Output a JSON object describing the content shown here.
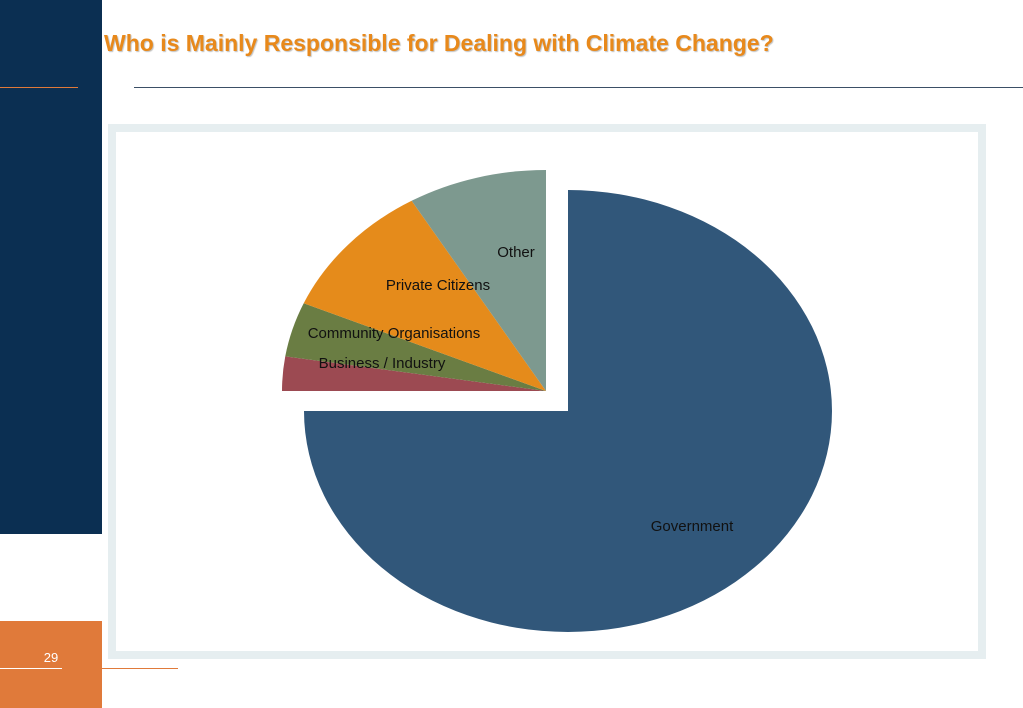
{
  "slide": {
    "title": "Who is Mainly Responsible for Dealing with Climate Change?",
    "page_number": "29"
  },
  "colors": {
    "sidebar": "#0b2f52",
    "accent": "#e07a3a",
    "title": "#e8891b"
  },
  "chart_data": {
    "type": "pie",
    "title": "",
    "slices": [
      {
        "label": "Government",
        "value": 75,
        "color": "#31577a",
        "exploded": false
      },
      {
        "label": "Business / Industry",
        "value": 2.5,
        "color": "#9c4a52",
        "exploded": true
      },
      {
        "label": "Community Organisations",
        "value": 4,
        "color": "#6a7d43",
        "exploded": true
      },
      {
        "label": "Private Citizens",
        "value": 10,
        "color": "#e58b1b",
        "exploded": true
      },
      {
        "label": "Other",
        "value": 8.5,
        "color": "#7d998f",
        "exploded": true
      }
    ],
    "start": "12 o'clock, clockwise",
    "legend": "none (slice labels)"
  }
}
